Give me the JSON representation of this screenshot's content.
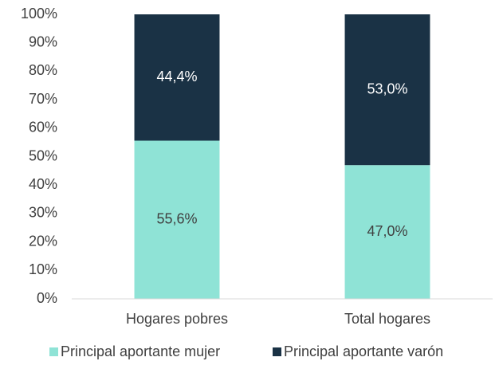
{
  "chart_data": {
    "type": "stacked_bar",
    "categories": [
      "Hogares pobres",
      "Total hogares"
    ],
    "series": [
      {
        "name": "Principal aportante mujer",
        "color": "#8fe3d6",
        "values": [
          55.6,
          47.0
        ],
        "value_labels": [
          "55,6%",
          "47,0%"
        ]
      },
      {
        "name": "Principal aportante varón",
        "color": "#1a3245",
        "values": [
          44.4,
          53.0
        ],
        "value_labels": [
          "44,4%",
          "53,0%"
        ]
      }
    ],
    "ylim": [
      0,
      100
    ],
    "yticks": [
      {
        "value": 0,
        "label": "0%"
      },
      {
        "value": 10,
        "label": "10%"
      },
      {
        "value": 20,
        "label": "20%"
      },
      {
        "value": 30,
        "label": "30%"
      },
      {
        "value": 40,
        "label": "40%"
      },
      {
        "value": 50,
        "label": "50%"
      },
      {
        "value": 60,
        "label": "60%"
      },
      {
        "value": 70,
        "label": "70%"
      },
      {
        "value": 80,
        "label": "80%"
      },
      {
        "value": 90,
        "label": "90%"
      },
      {
        "value": 100,
        "label": "100%"
      }
    ],
    "grid": false,
    "legend": "bottom"
  }
}
